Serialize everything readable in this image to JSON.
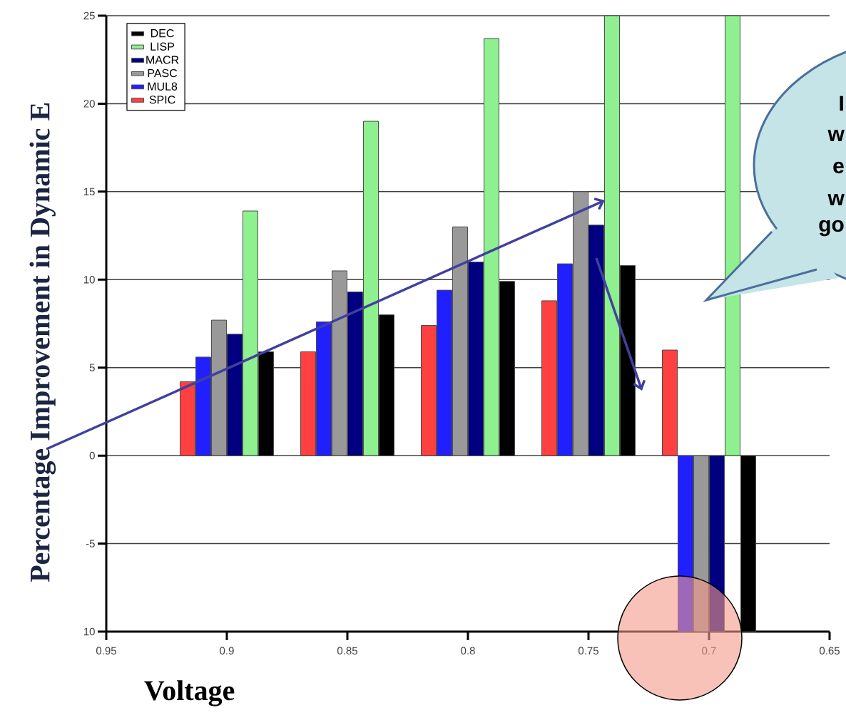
{
  "chart_data": {
    "type": "bar",
    "ylabel": "Percentage Improvement in Dynamic E",
    "xlabel": "Voltage",
    "x": [
      0.9,
      0.85,
      0.8,
      0.75,
      0.7
    ],
    "series": [
      {
        "name": "SPIC",
        "color": "#ff4040",
        "values": [
          4.2,
          5.9,
          7.4,
          8.8,
          6.0
        ]
      },
      {
        "name": "MUL8",
        "color": "#2020ff",
        "values": [
          5.6,
          7.6,
          9.4,
          10.9,
          -10
        ]
      },
      {
        "name": "PASC",
        "color": "#999999",
        "values": [
          7.7,
          10.5,
          13.0,
          15.0,
          -10
        ]
      },
      {
        "name": "MACR",
        "color": "#000080",
        "values": [
          6.9,
          9.3,
          11.0,
          13.1,
          -10
        ]
      },
      {
        "name": "LISP",
        "color": "#8ef08e",
        "values": [
          13.9,
          19.0,
          23.7,
          25,
          25
        ]
      },
      {
        "name": "DEC",
        "color": "#000000",
        "values": [
          5.9,
          8.0,
          9.9,
          10.8,
          -10
        ]
      }
    ],
    "xlim": [
      0.95,
      0.65
    ],
    "xticks": [
      0.95,
      0.9,
      0.85,
      0.8,
      0.75,
      0.7,
      0.65
    ],
    "ylim": [
      -10,
      25
    ],
    "yticks": [
      {
        "value": -10,
        "label": "10"
      },
      -5,
      0,
      5,
      10,
      15,
      20,
      25
    ],
    "grid": "y",
    "legend": "top left",
    "annotations": [
      "I",
      "w",
      "e",
      "w",
      "go"
    ]
  }
}
